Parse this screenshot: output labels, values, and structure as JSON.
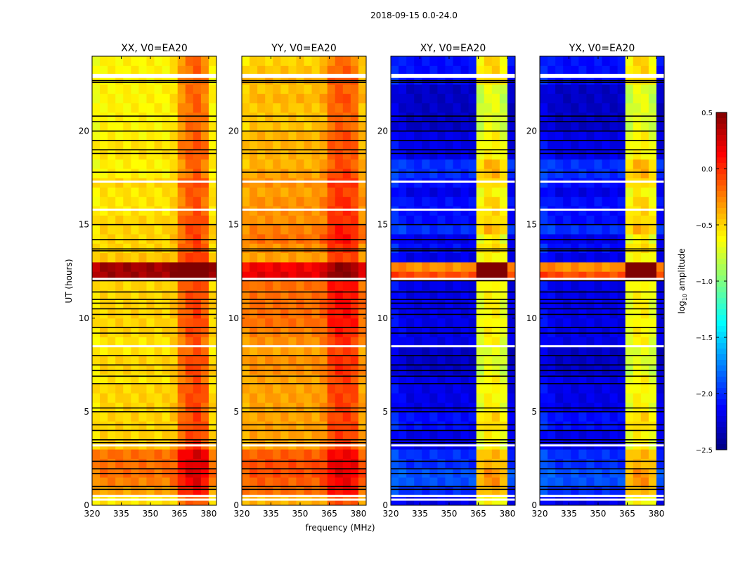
{
  "chart_data": {
    "type": "heatmap",
    "title": "2018-09-15 0.0-24.0",
    "xlabel": "frequency (MHz)",
    "ylabel": "UT (hours)",
    "xlim": [
      320,
      384
    ],
    "ylim": [
      0,
      24
    ],
    "xticks": [
      320,
      335,
      350,
      365,
      380
    ],
    "yticks": [
      0,
      5,
      10,
      15,
      20
    ],
    "colorbar": {
      "label": "log10 amplitude",
      "label_main": "log",
      "label_sub": "10",
      "label_rest": " amplitude",
      "colormap": "jet",
      "range": [
        -2.5,
        0.5
      ],
      "ticks": [
        "0.5",
        "0.0",
        "−0.5",
        "−1.0",
        "−1.5",
        "−2.0",
        "−2.5"
      ],
      "tick_values": [
        0.5,
        0.0,
        -0.5,
        -1.0,
        -1.5,
        -2.0,
        -2.5
      ]
    },
    "freq_bins_mhz": [
      320,
      324,
      328,
      332,
      336,
      340,
      344,
      348,
      352,
      356,
      360,
      364,
      368,
      372,
      376,
      380,
      384
    ],
    "time_step_hours": 0.5,
    "flagged_white_hours": [
      0.3,
      0.5,
      3.2,
      8.5,
      12.1,
      15.8,
      17.3,
      22.9,
      23.0
    ],
    "flagged_black_hours": [
      0.85,
      1.0,
      1.7,
      1.95,
      2.35,
      3.35,
      3.5,
      4.0,
      4.3,
      5.0,
      5.2,
      6.5,
      6.9,
      7.2,
      7.5,
      8.0,
      9.2,
      9.5,
      10.2,
      10.5,
      10.8,
      11.0,
      11.4,
      12.0,
      13.6,
      13.7,
      14.2,
      15.0,
      17.8,
      18.8,
      19.0,
      19.5,
      20.0,
      20.5,
      20.8,
      22.6,
      22.7
    ],
    "panels": [
      {
        "title": "XX, V0=EA20",
        "row_base": [
          -0.55,
          -0.35,
          -0.25,
          -0.2,
          -0.2,
          -0.2,
          -0.45,
          -0.5,
          -0.5,
          -0.5,
          -0.5,
          -0.5,
          -0.5,
          -0.55,
          -0.5,
          -0.5,
          -0.55,
          -0.55,
          -0.5,
          -0.5,
          -0.5,
          -0.5,
          -0.5,
          -0.5,
          0.4,
          0.4,
          -0.45,
          -0.5,
          -0.5,
          -0.5,
          -0.5,
          -0.55,
          -0.55,
          -0.55,
          -0.5,
          -0.6,
          -0.6,
          -0.55,
          -0.55,
          -0.6,
          -0.6,
          -0.6,
          -0.6,
          -0.6,
          -0.6,
          -0.6,
          -0.6,
          -0.6
        ],
        "col_offset": [
          -0.05,
          0,
          0,
          0,
          0,
          0,
          0,
          0,
          0,
          0,
          0.05,
          0.3,
          0.4,
          0.45,
          0.35,
          0
        ]
      },
      {
        "title": "YY, V0=EA20",
        "row_base": [
          -0.4,
          -0.2,
          -0.15,
          -0.1,
          -0.1,
          -0.15,
          -0.35,
          -0.35,
          -0.35,
          -0.35,
          -0.35,
          -0.35,
          -0.35,
          -0.35,
          -0.3,
          -0.3,
          -0.35,
          -0.3,
          -0.25,
          -0.2,
          -0.2,
          -0.2,
          -0.2,
          -0.2,
          0.2,
          0.15,
          -0.35,
          -0.3,
          -0.2,
          -0.25,
          -0.3,
          -0.3,
          -0.3,
          -0.35,
          -0.3,
          -0.35,
          -0.4,
          -0.4,
          -0.4,
          -0.4,
          -0.45,
          -0.45,
          -0.45,
          -0.4,
          -0.45,
          -0.4,
          -0.45,
          -0.5
        ],
        "col_offset": [
          -0.05,
          0,
          0,
          0,
          0,
          0,
          0,
          0,
          0,
          0,
          0.05,
          0.25,
          0.3,
          0.3,
          0.25,
          0
        ]
      },
      {
        "title": "XY, V0=EA20",
        "row_base": [
          -2.2,
          -2.0,
          -1.9,
          -1.9,
          -2.0,
          -2.0,
          -2.2,
          -2.2,
          -2.1,
          -2.1,
          -2.2,
          -2.2,
          -2.2,
          -2.2,
          -2.3,
          -2.3,
          -2.3,
          -2.2,
          -2.2,
          -2.2,
          -2.2,
          -2.2,
          -2.2,
          -2.2,
          -0.1,
          -0.3,
          -2.2,
          -2.1,
          -2.2,
          -2.0,
          -2.1,
          -2.1,
          -2.1,
          -2.2,
          -2.1,
          -2.0,
          -2.0,
          -2.2,
          -2.2,
          -2.2,
          -2.3,
          -2.3,
          -2.3,
          -2.3,
          -2.3,
          -2.1,
          -2.1,
          -2.1
        ],
        "col_offset": [
          0.1,
          0.05,
          0,
          0,
          0,
          0,
          0,
          0,
          0,
          0,
          0,
          1.5,
          1.6,
          1.6,
          1.5,
          0
        ]
      },
      {
        "title": "YX, V0=EA20",
        "row_base": [
          -2.2,
          -2.0,
          -1.9,
          -1.9,
          -2.0,
          -2.0,
          -2.2,
          -2.2,
          -2.1,
          -2.1,
          -2.2,
          -2.2,
          -2.2,
          -2.2,
          -2.3,
          -2.3,
          -2.3,
          -2.2,
          -2.2,
          -2.2,
          -2.2,
          -2.2,
          -2.2,
          -2.2,
          -0.1,
          -0.3,
          -2.2,
          -2.1,
          -2.2,
          -2.0,
          -2.1,
          -2.1,
          -2.1,
          -2.2,
          -2.1,
          -2.0,
          -2.0,
          -2.2,
          -2.2,
          -2.2,
          -2.3,
          -2.3,
          -2.3,
          -2.3,
          -2.3,
          -2.1,
          -2.1,
          -2.1
        ],
        "col_offset": [
          0.1,
          0.05,
          0,
          0,
          0,
          0,
          0,
          0,
          0,
          0,
          0,
          1.5,
          1.6,
          1.6,
          1.5,
          0
        ]
      }
    ]
  }
}
